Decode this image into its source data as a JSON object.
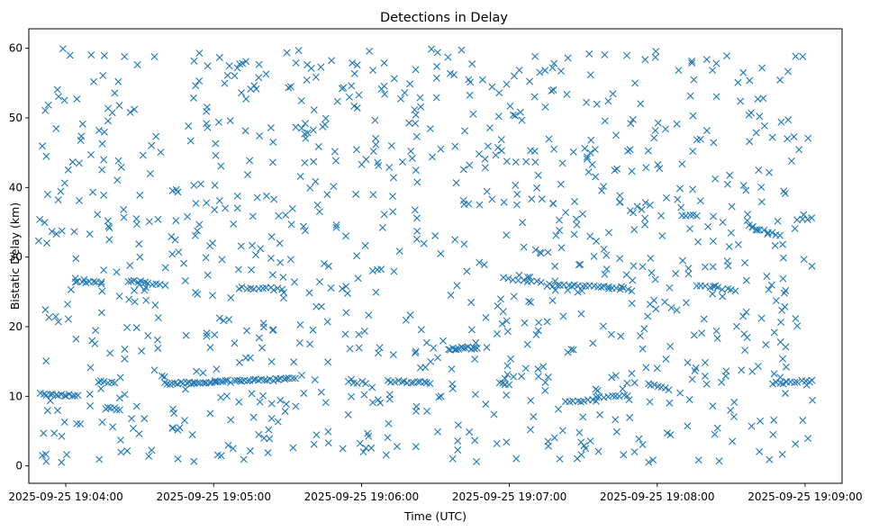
{
  "chart_data": {
    "type": "scatter",
    "title": "Detections in Delay",
    "xlabel": "Time (UTC)",
    "ylabel": "Bistatic Delay (km)",
    "marker": "x",
    "color": "#1f77b4",
    "xlim_seconds": [
      -15,
      315
    ],
    "ylim": [
      -2.5,
      62.8
    ],
    "x_ticks": [
      {
        "value": 0,
        "label": "2025-09-25 19:04:00"
      },
      {
        "value": 60,
        "label": "2025-09-25 19:05:00"
      },
      {
        "value": 120,
        "label": "2025-09-25 19:06:00"
      },
      {
        "value": 180,
        "label": "2025-09-25 19:07:00"
      },
      {
        "value": 240,
        "label": "2025-09-25 19:08:00"
      },
      {
        "value": 300,
        "label": "2025-09-25 19:09:00"
      }
    ],
    "y_ticks": [
      {
        "value": 0,
        "label": "0"
      },
      {
        "value": 10,
        "label": "10"
      },
      {
        "value": 20,
        "label": "20"
      },
      {
        "value": 30,
        "label": "30"
      },
      {
        "value": 40,
        "label": "40"
      },
      {
        "value": 50,
        "label": "50"
      },
      {
        "value": 60,
        "label": "60"
      }
    ],
    "time_range_seconds": [
      -12,
      303
    ],
    "background_clutter": {
      "count": 980,
      "delay_range": [
        0.5,
        60
      ],
      "seed": 20250925
    },
    "tracks": [
      {
        "t_start": -10,
        "t_end": 5,
        "delay_start": 10.3,
        "delay_end": 10.1,
        "points": 14
      },
      {
        "t_start": 5,
        "t_end": 14,
        "delay_start": 26.6,
        "delay_end": 26.2,
        "points": 7
      },
      {
        "t_start": 13,
        "t_end": 20,
        "delay_start": 12.2,
        "delay_end": 11.9,
        "points": 6
      },
      {
        "t_start": 16,
        "t_end": 22,
        "delay_start": 8.3,
        "delay_end": 8.1,
        "points": 6
      },
      {
        "t_start": 25,
        "t_end": 32,
        "delay_start": 26.6,
        "delay_end": 26.4,
        "points": 6
      },
      {
        "t_start": 30,
        "t_end": 40,
        "delay_start": 26.2,
        "delay_end": 26.0,
        "points": 7
      },
      {
        "t_start": 40,
        "t_end": 93,
        "delay_start": 11.8,
        "delay_end": 12.5,
        "points": 48
      },
      {
        "t_start": 70,
        "t_end": 88,
        "delay_start": 25.6,
        "delay_end": 25.4,
        "points": 12
      },
      {
        "t_start": 115,
        "t_end": 122,
        "delay_start": 12.0,
        "delay_end": 12.0,
        "points": 5
      },
      {
        "t_start": 131,
        "t_end": 148,
        "delay_start": 12.2,
        "delay_end": 12.0,
        "points": 14
      },
      {
        "t_start": 155,
        "t_end": 167,
        "delay_start": 16.8,
        "delay_end": 17.0,
        "points": 14
      },
      {
        "t_start": 176,
        "t_end": 180,
        "delay_start": 11.8,
        "delay_end": 11.6,
        "points": 4
      },
      {
        "t_start": 178,
        "t_end": 193,
        "delay_start": 26.9,
        "delay_end": 26.3,
        "points": 9
      },
      {
        "t_start": 195,
        "t_end": 220,
        "delay_start": 26.0,
        "delay_end": 25.8,
        "points": 18
      },
      {
        "t_start": 203,
        "t_end": 215,
        "delay_start": 9.2,
        "delay_end": 9.4,
        "points": 9
      },
      {
        "t_start": 215,
        "t_end": 228,
        "delay_start": 9.9,
        "delay_end": 10.1,
        "points": 9
      },
      {
        "t_start": 220,
        "t_end": 230,
        "delay_start": 25.6,
        "delay_end": 25.3,
        "points": 7
      },
      {
        "t_start": 237,
        "t_end": 245,
        "delay_start": 11.7,
        "delay_end": 11.0,
        "points": 6
      },
      {
        "t_start": 250,
        "t_end": 256,
        "delay_start": 36.1,
        "delay_end": 35.9,
        "points": 5
      },
      {
        "t_start": 256,
        "t_end": 272,
        "delay_start": 25.9,
        "delay_end": 25.3,
        "points": 10
      },
      {
        "t_start": 277,
        "t_end": 290,
        "delay_start": 34.4,
        "delay_end": 33.2,
        "points": 9
      },
      {
        "t_start": 287,
        "t_end": 303,
        "delay_start": 11.8,
        "delay_end": 12.2,
        "points": 12
      },
      {
        "t_start": 297,
        "t_end": 303,
        "delay_start": 35.2,
        "delay_end": 35.5,
        "points": 4
      }
    ]
  }
}
